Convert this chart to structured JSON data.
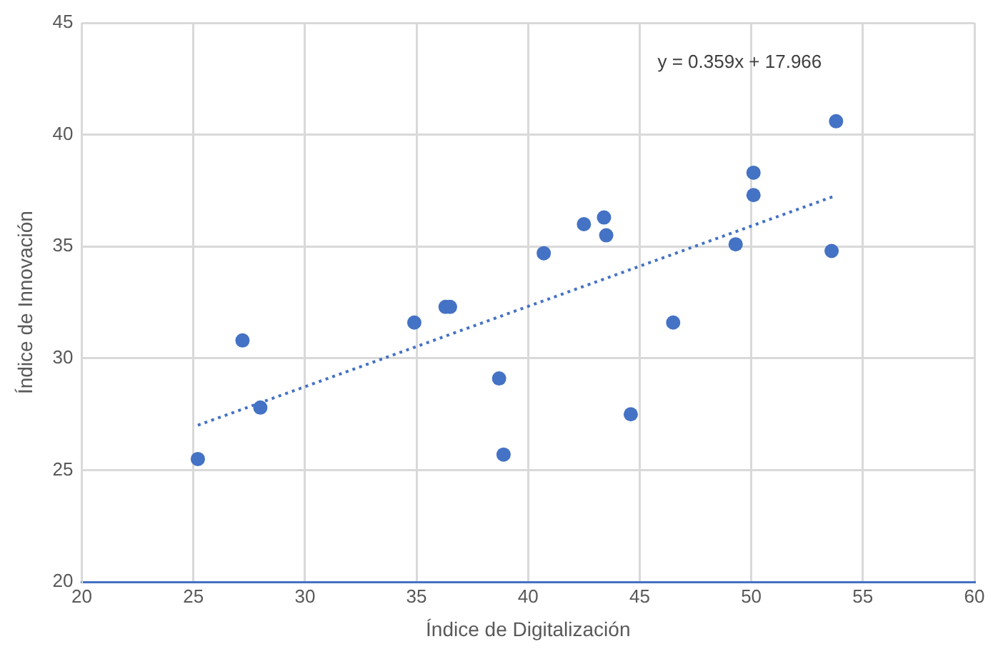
{
  "chart_data": {
    "type": "scatter",
    "xlabel": "Índice de Digitalización",
    "ylabel": "Índice de Innovación",
    "xlim": [
      20,
      60
    ],
    "xticks": [
      20,
      25,
      30,
      35,
      40,
      45,
      50,
      55,
      60
    ],
    "ylim": [
      20,
      45
    ],
    "yticks": [
      20,
      25,
      30,
      35,
      40,
      45
    ],
    "grid": true,
    "legend": false,
    "marker": "circle",
    "series": [
      {
        "type": "scatter",
        "color": "#4472c4",
        "x": [
          25.2,
          27.2,
          28.0,
          34.9,
          36.3,
          36.5,
          38.7,
          38.9,
          40.7,
          42.5,
          43.4,
          43.5,
          44.6,
          46.5,
          49.3,
          50.1,
          50.1,
          53.6,
          53.8
        ],
        "values": [
          25.5,
          30.8,
          27.8,
          31.6,
          32.3,
          32.3,
          29.1,
          25.7,
          34.7,
          36.0,
          36.3,
          35.5,
          27.5,
          31.6,
          35.1,
          37.3,
          38.3,
          34.8,
          40.6
        ]
      },
      {
        "type": "line",
        "color": "#4472c4",
        "line_style": "dotted",
        "marker": "none",
        "x": [
          25.2,
          53.8
        ],
        "values": [
          27.01,
          37.28
        ]
      }
    ],
    "annotations": [
      "y = 0.359x + 17.966"
    ]
  }
}
